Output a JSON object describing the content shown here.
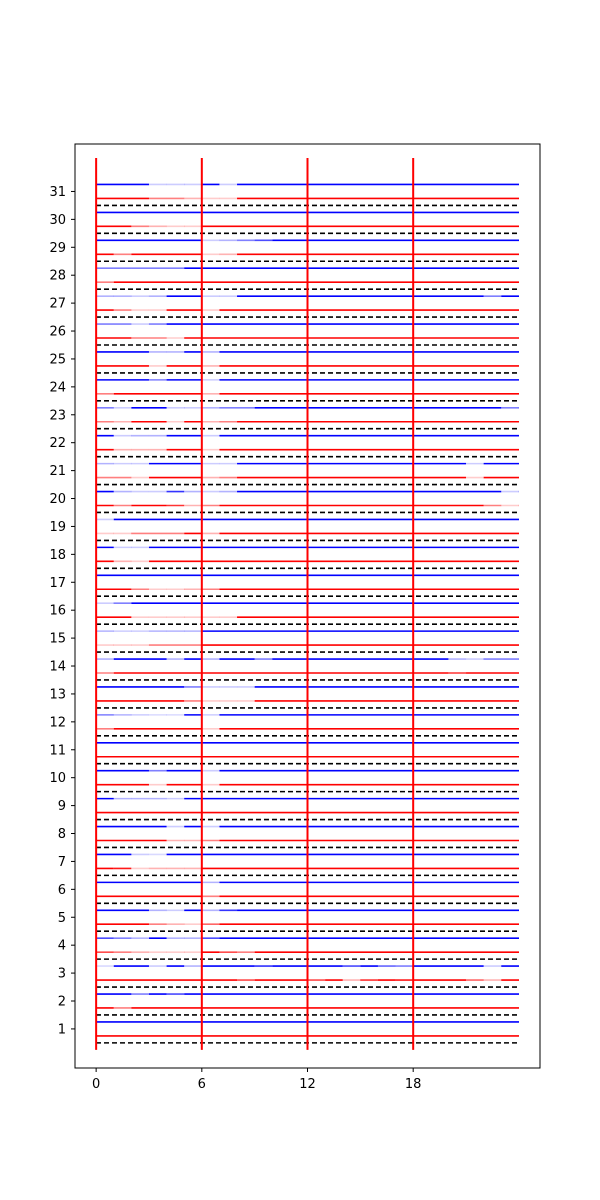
{
  "chart_data": {
    "type": "heatmap",
    "title": "",
    "xlabel": "",
    "ylabel": "",
    "x_ticks": [
      0,
      6,
      12,
      18
    ],
    "y_ticks": [
      1,
      2,
      3,
      4,
      5,
      6,
      7,
      8,
      9,
      10,
      11,
      12,
      13,
      14,
      15,
      16,
      17,
      18,
      19,
      20,
      21,
      22,
      23,
      24,
      25,
      26,
      27,
      28,
      29,
      30,
      31
    ],
    "xlim": [
      -1.2,
      25.2
    ],
    "ylim": [
      -0.4,
      32.7
    ],
    "grid": false,
    "legend": "none",
    "colors": {
      "red_series": "#ff0000",
      "blue_series": "#0000ff",
      "separator": "#000000"
    },
    "vertical_markers": [
      0,
      6,
      12,
      18
    ],
    "separators": [
      0.5,
      1.5,
      2.5,
      3.5,
      4.5,
      5.5,
      6.5,
      7.5,
      8.5,
      9.5,
      10.5,
      11.5,
      12.5,
      13.5,
      14.5,
      15.5,
      16.5,
      17.5,
      18.5,
      19.5,
      20.5,
      21.5,
      22.5,
      23.5,
      24.5,
      25.5,
      26.5,
      27.5,
      28.5,
      29.5,
      30.5
    ],
    "blue_offset": 0.25,
    "red_offset": -0.25,
    "rows": [
      {
        "y": 1,
        "red": [],
        "blue": []
      },
      {
        "y": 2,
        "red": [
          [
            1,
            0.5
          ]
        ],
        "blue": [
          [
            2,
            0.5
          ],
          [
            4,
            0.7
          ]
        ]
      },
      {
        "y": 3,
        "red": [
          [
            8,
            0.7
          ],
          [
            12,
            0.7
          ],
          [
            14,
            0.3
          ],
          [
            15,
            0.8
          ],
          [
            17,
            0.9
          ],
          [
            21,
            0.6
          ],
          [
            22,
            0.3
          ]
        ],
        "blue": [
          [
            0,
            0.15
          ],
          [
            3,
            0.2
          ],
          [
            5,
            0.3
          ],
          [
            9,
            0.8
          ],
          [
            14,
            0.7
          ],
          [
            16,
            0.6
          ],
          [
            17,
            0.5
          ],
          [
            22,
            0.2
          ]
        ]
      },
      {
        "y": 4,
        "red": [
          [
            0,
            0.7
          ],
          [
            1,
            0.5
          ],
          [
            2,
            0.3
          ],
          [
            3,
            0.2
          ],
          [
            4,
            0.2
          ],
          [
            5,
            0.2
          ],
          [
            7,
            0.7
          ],
          [
            8,
            0.5
          ]
        ],
        "blue": [
          [
            0,
            0.7
          ],
          [
            1,
            0.5
          ],
          [
            2,
            0.3
          ],
          [
            4,
            0.3
          ],
          [
            5,
            0.3
          ],
          [
            6,
            0.7
          ]
        ]
      },
      {
        "y": 5,
        "red": [
          [
            3,
            0.5
          ],
          [
            4,
            0.3
          ],
          [
            5,
            0.2
          ],
          [
            6,
            0.6
          ]
        ],
        "blue": [
          [
            3,
            0.3
          ],
          [
            4,
            0.2
          ],
          [
            6,
            0.3
          ],
          [
            7,
            0.8
          ]
        ]
      },
      {
        "y": 6,
        "red": [
          [
            6,
            0.5
          ]
        ],
        "blue": [
          [
            6,
            0.3
          ]
        ]
      },
      {
        "y": 7,
        "red": [
          [
            1,
            0.9
          ],
          [
            2,
            0.2
          ],
          [
            3,
            0.3
          ],
          [
            4,
            0.3
          ],
          [
            5,
            0.3
          ]
        ],
        "blue": [
          [
            2,
            0.2
          ],
          [
            3,
            0.15
          ]
        ]
      },
      {
        "y": 8,
        "red": [
          [
            4,
            0.3
          ],
          [
            5,
            0.3
          ],
          [
            6,
            0.5
          ]
        ],
        "blue": [
          [
            4,
            0.2
          ],
          [
            6,
            0.2
          ]
        ]
      },
      {
        "y": 9,
        "red": [],
        "blue": [
          [
            1,
            0.3
          ],
          [
            2,
            0.3
          ],
          [
            3,
            0.3
          ],
          [
            4,
            0.2
          ]
        ]
      },
      {
        "y": 10,
        "red": [
          [
            3,
            0.2
          ],
          [
            6,
            0.2
          ]
        ],
        "blue": [
          [
            3,
            0.5
          ],
          [
            6,
            0.2
          ]
        ]
      },
      {
        "y": 11,
        "red": [],
        "blue": []
      },
      {
        "y": 12,
        "red": [
          [
            0,
            0.5
          ],
          [
            6,
            0.2
          ]
        ],
        "blue": [
          [
            0,
            0.5
          ],
          [
            1,
            0.3
          ],
          [
            2,
            0.2
          ],
          [
            3,
            0.15
          ],
          [
            4,
            0.15
          ],
          [
            6,
            0.2
          ]
        ]
      },
      {
        "y": 13,
        "red": [
          [
            5,
            0.5
          ],
          [
            6,
            0.2
          ],
          [
            7,
            0.2
          ],
          [
            8,
            0.2
          ]
        ],
        "blue": [
          [
            5,
            0.5
          ],
          [
            6,
            0.2
          ],
          [
            7,
            0.2
          ],
          [
            8,
            0.2
          ]
        ]
      },
      {
        "y": 14,
        "red": [
          [
            0,
            0.5
          ],
          [
            20,
            0.8
          ]
        ],
        "blue": [
          [
            0,
            0.3
          ],
          [
            4,
            0.3
          ],
          [
            6,
            0.3
          ],
          [
            9,
            0.5
          ],
          [
            20,
            0.3
          ],
          [
            21,
            0.2
          ],
          [
            22,
            0.5
          ],
          [
            23,
            0.5
          ]
        ]
      },
      {
        "y": 15,
        "red": [
          [
            0,
            0.2
          ],
          [
            1,
            0.2
          ],
          [
            2,
            0.2
          ],
          [
            3,
            0.5
          ],
          [
            4,
            0.5
          ],
          [
            5,
            0.5
          ]
        ],
        "blue": [
          [
            0,
            0.3
          ],
          [
            1,
            0.2
          ],
          [
            2,
            0.2
          ],
          [
            3,
            0.3
          ],
          [
            4,
            0.3
          ],
          [
            5,
            0.3
          ]
        ]
      },
      {
        "y": 16,
        "red": [
          [
            2,
            0.2
          ],
          [
            3,
            0.2
          ],
          [
            4,
            0.2
          ],
          [
            5,
            0.2
          ],
          [
            6,
            0.2
          ],
          [
            7,
            0.2
          ]
        ],
        "blue": [
          [
            0,
            0.2
          ],
          [
            1,
            0.5
          ]
        ]
      },
      {
        "y": 17,
        "red": [
          [
            2,
            0.5
          ],
          [
            3,
            0.2
          ],
          [
            4,
            0.2
          ],
          [
            5,
            0.3
          ],
          [
            6,
            0.5
          ]
        ],
        "blue": []
      },
      {
        "y": 18,
        "red": [
          [
            1,
            0.3
          ],
          [
            2,
            0.2
          ]
        ],
        "blue": [
          [
            1,
            0.2
          ],
          [
            2,
            0.2
          ]
        ]
      },
      {
        "y": 19,
        "red": [
          [
            0,
            0.2
          ],
          [
            1,
            0.2
          ],
          [
            2,
            0.5
          ],
          [
            3,
            0.5
          ],
          [
            4,
            0.5
          ],
          [
            6,
            0.3
          ]
        ],
        "blue": [
          [
            0,
            0.2
          ]
        ]
      },
      {
        "y": 20,
        "red": [
          [
            1,
            0.5
          ],
          [
            4,
            0.8
          ],
          [
            5,
            0.3
          ],
          [
            6,
            0.5
          ],
          [
            22,
            0.5
          ],
          [
            23,
            0.2
          ]
        ],
        "blue": [
          [
            1,
            0.3
          ],
          [
            2,
            0.2
          ],
          [
            3,
            0.2
          ],
          [
            4,
            0.8
          ],
          [
            5,
            0.3
          ],
          [
            6,
            0.2
          ],
          [
            7,
            0.3
          ],
          [
            23,
            0.2
          ]
        ]
      },
      {
        "y": 21,
        "red": [
          [
            0,
            0.5
          ],
          [
            1,
            0.5
          ],
          [
            2,
            0.2
          ],
          [
            6,
            0.3
          ],
          [
            7,
            0.5
          ],
          [
            21,
            0.2
          ]
        ],
        "blue": [
          [
            0,
            0.3
          ],
          [
            1,
            0.2
          ],
          [
            2,
            0.2
          ],
          [
            6,
            0.2
          ],
          [
            7,
            0.2
          ],
          [
            21,
            0.2
          ]
        ]
      },
      {
        "y": 22,
        "red": [
          [
            1,
            0.3
          ],
          [
            2,
            0.3
          ],
          [
            3,
            0.3
          ],
          [
            6,
            0.2
          ]
        ],
        "blue": [
          [
            1,
            0.2
          ],
          [
            2,
            0.3
          ],
          [
            3,
            0.3
          ],
          [
            6,
            0.2
          ]
        ]
      },
      {
        "y": 23,
        "red": [
          [
            0,
            0.5
          ],
          [
            1,
            0.3
          ],
          [
            4,
            0.2
          ],
          [
            6,
            0.3
          ],
          [
            7,
            0.5
          ]
        ],
        "blue": [
          [
            0,
            0.5
          ],
          [
            1,
            0.2
          ],
          [
            4,
            0.2
          ],
          [
            5,
            0.2
          ],
          [
            6,
            0.3
          ],
          [
            7,
            0.5
          ],
          [
            8,
            0.5
          ],
          [
            23,
            0.5
          ]
        ]
      },
      {
        "y": 24,
        "red": [
          [
            0,
            0.5
          ],
          [
            6,
            0.3
          ]
        ],
        "blue": [
          [
            3,
            0.5
          ],
          [
            6,
            0.2
          ]
        ]
      },
      {
        "y": 25,
        "red": [
          [
            3,
            0.2
          ],
          [
            6,
            0.3
          ]
        ],
        "blue": [
          [
            3,
            0.3
          ],
          [
            4,
            0.3
          ],
          [
            6,
            0.3
          ]
        ]
      },
      {
        "y": 26,
        "red": [
          [
            2,
            0.5
          ],
          [
            3,
            0.5
          ],
          [
            4,
            0.2
          ]
        ],
        "blue": [
          [
            0,
            0.5
          ],
          [
            1,
            0.5
          ],
          [
            2,
            0.2
          ],
          [
            3,
            0.5
          ]
        ]
      },
      {
        "y": 27,
        "red": [
          [
            1,
            0.5
          ],
          [
            2,
            0.2
          ],
          [
            3,
            0.2
          ],
          [
            6,
            0.2
          ]
        ],
        "blue": [
          [
            0,
            0.3
          ],
          [
            1,
            0.3
          ],
          [
            2,
            0.2
          ],
          [
            3,
            0.3
          ],
          [
            6,
            0.2
          ],
          [
            7,
            0.2
          ],
          [
            22,
            0.5
          ]
        ]
      },
      {
        "y": 28,
        "red": [
          [
            0,
            0.5
          ]
        ],
        "blue": [
          [
            0,
            0.5
          ],
          [
            1,
            0.5
          ],
          [
            2,
            0.5
          ],
          [
            3,
            0.5
          ],
          [
            4,
            0.5
          ]
        ]
      },
      {
        "y": 29,
        "red": [
          [
            1,
            0.5
          ],
          [
            6,
            0.2
          ],
          [
            7,
            0.3
          ]
        ],
        "blue": [
          [
            6,
            0.2
          ],
          [
            7,
            0.3
          ],
          [
            8,
            0.5
          ],
          [
            9,
            0.7
          ]
        ]
      },
      {
        "y": 30,
        "red": [
          [
            2,
            0.5
          ],
          [
            3,
            0.3
          ],
          [
            4,
            0.2
          ],
          [
            5,
            0.2
          ]
        ],
        "blue": []
      },
      {
        "y": 31,
        "red": [
          [
            3,
            0.5
          ],
          [
            4,
            0.5
          ],
          [
            5,
            0.3
          ],
          [
            6,
            0.2
          ],
          [
            7,
            0.2
          ]
        ],
        "blue": [
          [
            3,
            0.2
          ],
          [
            4,
            0.2
          ],
          [
            5,
            0.2
          ],
          [
            7,
            0.2
          ]
        ]
      }
    ]
  }
}
